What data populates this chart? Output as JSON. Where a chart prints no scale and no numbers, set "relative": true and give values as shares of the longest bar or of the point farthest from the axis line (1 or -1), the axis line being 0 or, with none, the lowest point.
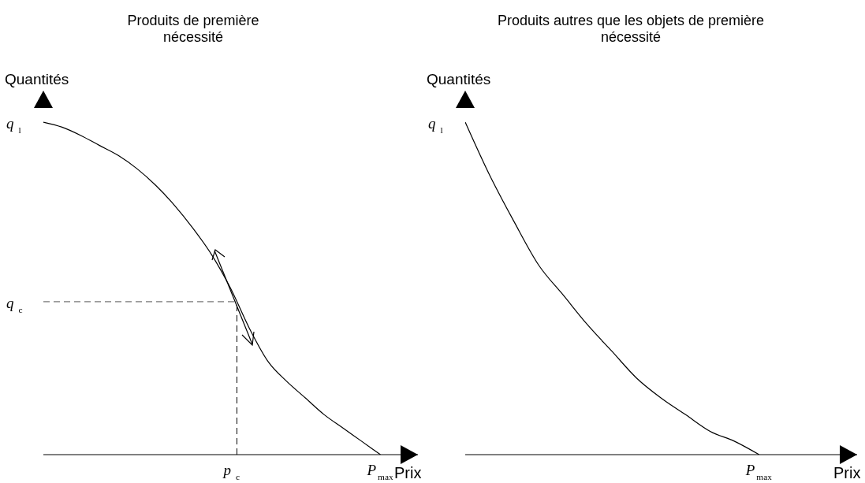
{
  "chart_data": [
    {
      "type": "line",
      "title": "Produits de première nécessité",
      "xlabel": "Prix",
      "ylabel": "Quantités",
      "relative": true,
      "color": "#000000",
      "categories": [
        null,
        null,
        null,
        null,
        null,
        null,
        null,
        null,
        null,
        null,
        null,
        null,
        null,
        null,
        null,
        null,
        null,
        null,
        null,
        null,
        null
      ],
      "values": [
        1,
        0.985,
        0.96,
        0.93,
        0.9,
        0.86,
        0.81,
        0.75,
        0.68,
        0.6,
        0.5,
        0.38,
        0.28,
        0.22,
        0.17,
        0.12,
        0.08,
        0.04,
        0,
        null,
        null
      ],
      "ref_lines": [
        {
          "axis": "y",
          "value": 0.46,
          "label": "q$_{c}$",
          "line_style": "dashed"
        }
      ],
      "annotations": [
        "q$_{l}$",
        "p$_{c}$",
        "P$_{max}$"
      ]
    },
    {
      "type": "line",
      "title": "Produits autres que les objets de première nécessité",
      "xlabel": "Prix",
      "ylabel": "Quantités",
      "relative": true,
      "color": "#000000",
      "categories": [
        null,
        null,
        null,
        null,
        null,
        null,
        null,
        null,
        null,
        null,
        null,
        null,
        null,
        null,
        null,
        null,
        null
      ],
      "values": [
        1,
        0.84,
        0.7,
        0.57,
        0.48,
        0.39,
        0.31,
        0.23,
        0.17,
        0.12,
        0.07,
        0.04,
        0,
        null,
        null,
        null,
        null
      ],
      "annotations": [
        "q$_{l}$",
        "P$_{max}$"
      ]
    }
  ]
}
